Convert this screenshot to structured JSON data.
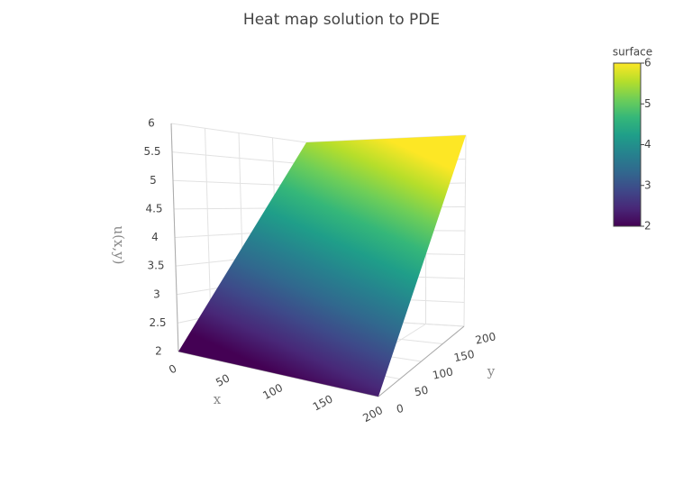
{
  "chart_data": {
    "type": "surface",
    "title": "Heat map solution to PDE",
    "x_label": "x",
    "y_label": "y",
    "z_label": "u(x,y)",
    "x": [
      0,
      200
    ],
    "y": [
      0,
      200
    ],
    "z": [
      [
        2,
        2
      ],
      [
        6,
        6
      ]
    ],
    "xlim": [
      0,
      200
    ],
    "ylim": [
      0,
      200
    ],
    "zlim": [
      2,
      6
    ],
    "xticks": [
      0,
      50,
      100,
      150,
      200
    ],
    "yticks": [
      0,
      50,
      100,
      150,
      200
    ],
    "zticks": [
      2,
      2.5,
      3,
      3.5,
      4,
      4.5,
      5,
      5.5,
      6
    ],
    "grid": true,
    "colorscale": [
      "#440154",
      "#482878",
      "#3e4989",
      "#31688e",
      "#26828e",
      "#1f9e89",
      "#35b779",
      "#6ece58",
      "#b5de2b",
      "#fde725"
    ],
    "colorbar": {
      "title": "surface",
      "range": [
        2,
        6
      ],
      "ticks": [
        2,
        3,
        4,
        5,
        6
      ]
    }
  }
}
